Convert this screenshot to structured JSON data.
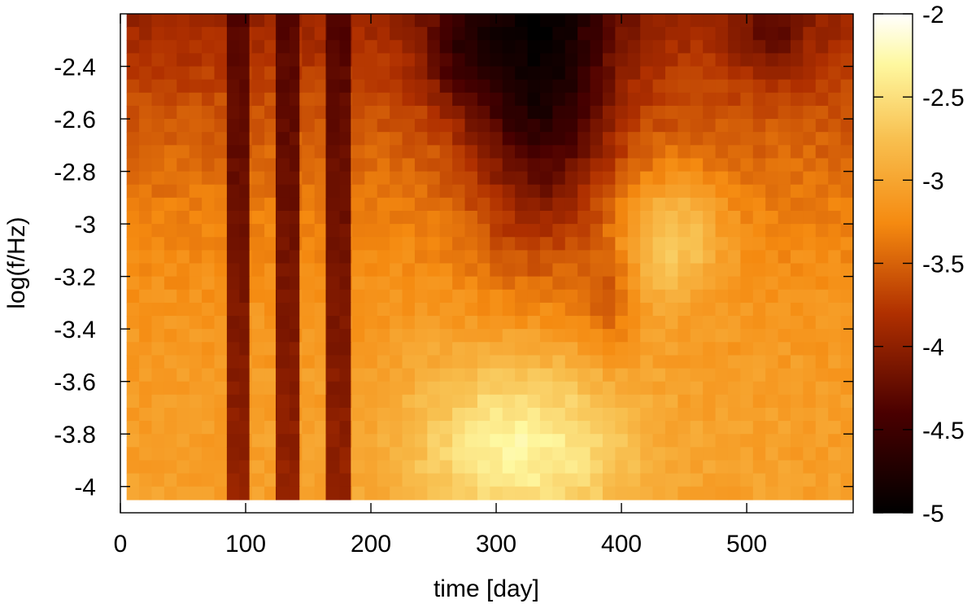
{
  "chart_data": {
    "type": "heatmap",
    "xlabel": "time [day]",
    "ylabel": "log(f/Hz)",
    "xlim": [
      0,
      585
    ],
    "ylim": [
      -4.1,
      -2.2
    ],
    "x_ticks": [
      0,
      100,
      200,
      300,
      400,
      500
    ],
    "y_ticks": [
      -2.4,
      -2.6,
      -2.8,
      -3,
      -3.2,
      -3.4,
      -3.6,
      -3.8,
      -4
    ],
    "x_tick_labels": [
      "0",
      "100",
      "200",
      "300",
      "400",
      "500"
    ],
    "y_tick_labels": [
      "-2.4",
      "-2.6",
      "-2.8",
      "-3",
      "-3.2",
      "-3.4",
      "-3.6",
      "-3.8",
      "-4"
    ],
    "colorbar": {
      "range": [
        -5,
        -2
      ],
      "ticks": [
        -2,
        -2.5,
        -3,
        -3.5,
        -4,
        -4.5,
        -5
      ],
      "tick_labels": [
        "-2",
        "-2.5",
        "-3",
        "-3.5",
        "-4",
        "-4.5",
        "-5"
      ]
    },
    "grid": false,
    "cells": {
      "x_start": 5,
      "x_end": 585,
      "x_step": 10,
      "y_start": -2.2,
      "y_end": -4.05,
      "y_step": 0.05,
      "gaps_days": [
        [
          103,
          123
        ],
        [
          143,
          164
        ],
        [
          184,
          185
        ]
      ],
      "dark_columns_days": [
        [
          85,
          103
        ],
        [
          124,
          143
        ],
        [
          164,
          184
        ]
      ],
      "value_field": {
        "base": -3.05,
        "high_frequency_darkening": -0.9,
        "features": [
          {
            "name": "low-frequency bright zone",
            "x": 320,
            "y": -3.85,
            "sx": 60,
            "sy": 0.25,
            "amp": 0.75
          },
          {
            "name": "high-frequency dark funnel",
            "x": 335,
            "y": -2.45,
            "sx": 40,
            "sy": 0.45,
            "amp": -1.2
          },
          {
            "name": "bright patch",
            "x": 440,
            "y": -3.05,
            "sx": 30,
            "sy": 0.17,
            "amp": 0.6
          },
          {
            "name": "dark patch",
            "x": 270,
            "y": -2.35,
            "sx": 22,
            "sy": 0.15,
            "amp": -0.5
          },
          {
            "name": "dark patch",
            "x": 520,
            "y": -2.3,
            "sx": 20,
            "sy": 0.12,
            "amp": -0.4
          },
          {
            "name": "orange lobe",
            "x": 390,
            "y": -3.3,
            "sx": 15,
            "sy": 0.15,
            "amp": -0.35
          }
        ],
        "dark_column_level": [
          -4.35,
          -3.95
        ]
      }
    }
  }
}
